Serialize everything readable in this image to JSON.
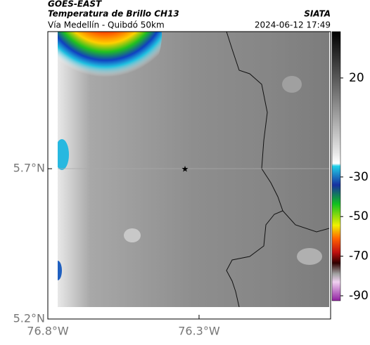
{
  "header": {
    "source": "GOES-EAST",
    "title": "Temperatura de Brillo CH13",
    "region": "Vía Medellín - Quibdó 50km",
    "agency": "SIATA",
    "timestamp": "2024-06-12 17:49"
  },
  "map": {
    "lon_range": [
      -76.8,
      -75.865
    ],
    "lat_range": [
      5.2,
      6.156
    ],
    "lon_ticks": [
      {
        "value": -76.8,
        "label": "76.8°W"
      },
      {
        "value": -76.3,
        "label": "76.3°W"
      }
    ],
    "lat_ticks": [
      {
        "value": 5.7,
        "label": "5.7°N"
      },
      {
        "value": 5.2,
        "label": "5.2°N"
      }
    ]
  },
  "colorbar": {
    "range": [
      -92.5,
      43.4
    ],
    "ticks": [
      20,
      -30,
      -50,
      -70,
      -90
    ]
  }
}
